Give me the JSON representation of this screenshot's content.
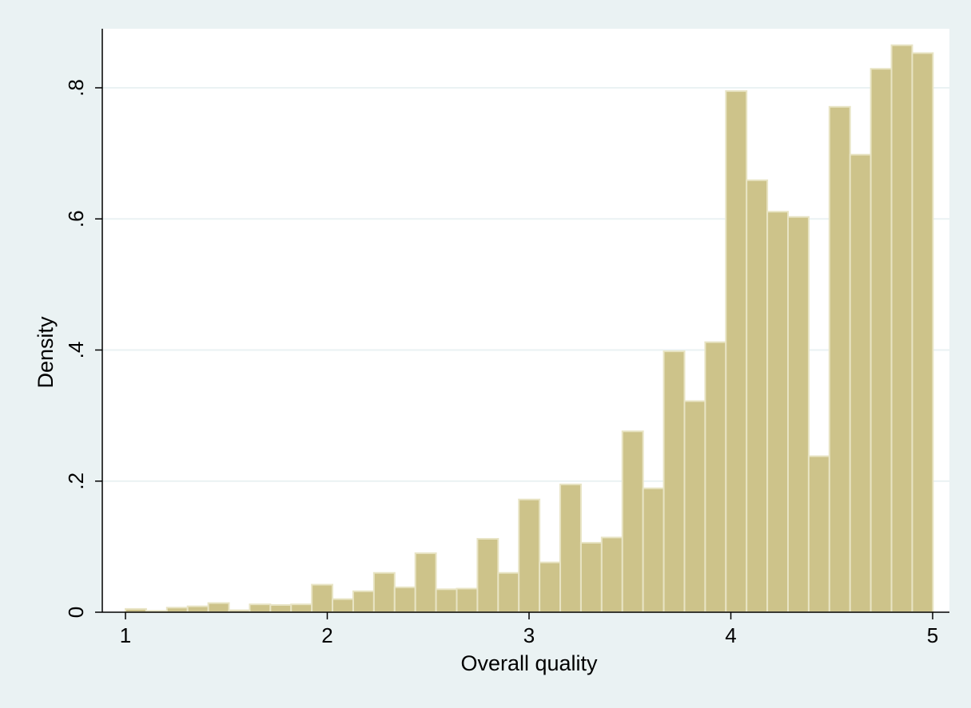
{
  "colors": {
    "outer_background": "#eaf2f3",
    "plot_background": "#ffffff",
    "bar_fill": "#cdc38a",
    "bar_stroke": "#e8e4c4",
    "grid": "#eaf2f3",
    "axis": "#000000"
  },
  "chart_data": {
    "type": "bar",
    "subtype": "histogram",
    "title": "",
    "xlabel": "Overall quality",
    "ylabel": "Density",
    "xlim": [
      1,
      5
    ],
    "ylim": [
      0,
      0.88
    ],
    "grid": true,
    "x_ticks": [
      {
        "value": 1,
        "label": "1"
      },
      {
        "value": 2,
        "label": "2"
      },
      {
        "value": 3,
        "label": "3"
      },
      {
        "value": 4,
        "label": "4"
      },
      {
        "value": 5,
        "label": "5"
      }
    ],
    "y_ticks": [
      {
        "value": 0,
        "label": "0"
      },
      {
        "value": 0.2,
        "label": ".2"
      },
      {
        "value": 0.4,
        "label": ".4"
      },
      {
        "value": 0.6,
        "label": ".6"
      },
      {
        "value": 0.8,
        "label": ".8"
      }
    ],
    "bin_start": 1.0,
    "bin_width": 0.1026,
    "values": [
      0.005,
      0.002,
      0.007,
      0.009,
      0.014,
      0.003,
      0.012,
      0.011,
      0.012,
      0.042,
      0.02,
      0.032,
      0.06,
      0.038,
      0.09,
      0.035,
      0.036,
      0.112,
      0.06,
      0.172,
      0.076,
      0.195,
      0.106,
      0.114,
      0.276,
      0.189,
      0.398,
      0.322,
      0.412,
      0.795,
      0.659,
      0.611,
      0.603,
      0.238,
      0.771,
      0.698,
      0.829,
      0.865,
      0.853
    ]
  }
}
